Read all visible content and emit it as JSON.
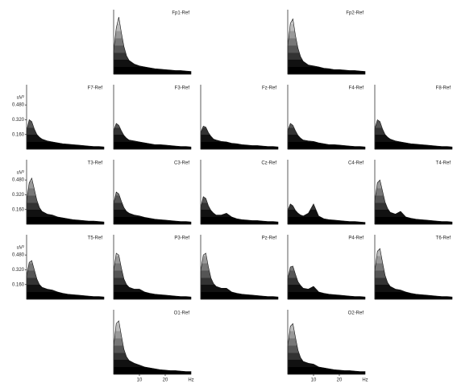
{
  "chart_data": [
    {
      "type": "area",
      "title": "Fp1-Ref",
      "x": [
        0,
        1,
        2,
        3,
        4,
        5,
        6,
        8,
        10,
        12,
        14,
        16,
        18,
        20,
        22,
        24,
        26,
        28,
        30
      ],
      "values": [
        0.25,
        0.5,
        0.62,
        0.45,
        0.3,
        0.2,
        0.15,
        0.11,
        0.09,
        0.08,
        0.07,
        0.06,
        0.055,
        0.05,
        0.045,
        0.04,
        0.04,
        0.035,
        0.03
      ],
      "xlim": [
        0,
        30
      ],
      "ylim": [
        0,
        0.7
      ]
    },
    {
      "type": "area",
      "title": "Fp2-Ref",
      "x": [
        0,
        1,
        2,
        3,
        4,
        5,
        6,
        8,
        10,
        12,
        14,
        16,
        18,
        20,
        22,
        24,
        26,
        28,
        30
      ],
      "values": [
        0.3,
        0.55,
        0.6,
        0.42,
        0.28,
        0.19,
        0.14,
        0.1,
        0.09,
        0.08,
        0.065,
        0.06,
        0.05,
        0.05,
        0.045,
        0.04,
        0.04,
        0.035,
        0.03
      ],
      "xlim": [
        0,
        30
      ],
      "ylim": [
        0,
        0.7
      ]
    },
    {
      "type": "area",
      "title": "F7-Ref",
      "x": [
        0,
        1,
        2,
        3,
        4,
        5,
        6,
        8,
        10,
        12,
        14,
        16,
        18,
        20,
        22,
        24,
        26,
        28,
        30
      ],
      "values": [
        0.2,
        0.32,
        0.3,
        0.22,
        0.16,
        0.13,
        0.11,
        0.09,
        0.08,
        0.07,
        0.06,
        0.055,
        0.05,
        0.045,
        0.04,
        0.035,
        0.03,
        0.03,
        0.025
      ],
      "xlim": [
        0,
        30
      ],
      "ylim": [
        0,
        0.7
      ],
      "y_label": "uV²",
      "yticks": [
        {
          "value": 0.16,
          "label": "0.160"
        },
        {
          "value": 0.32,
          "label": "0.320"
        },
        {
          "value": 0.48,
          "label": "0.480"
        }
      ]
    },
    {
      "type": "area",
      "title": "F3-Ref",
      "x": [
        0,
        1,
        2,
        3,
        4,
        5,
        6,
        8,
        10,
        12,
        14,
        16,
        18,
        20,
        22,
        24,
        26,
        28,
        30
      ],
      "values": [
        0.2,
        0.28,
        0.26,
        0.2,
        0.15,
        0.12,
        0.1,
        0.09,
        0.08,
        0.07,
        0.06,
        0.05,
        0.05,
        0.045,
        0.04,
        0.035,
        0.03,
        0.03,
        0.025
      ],
      "xlim": [
        0,
        30
      ],
      "ylim": [
        0,
        0.7
      ]
    },
    {
      "type": "area",
      "title": "Fz-Ref",
      "x": [
        0,
        1,
        2,
        3,
        4,
        5,
        6,
        8,
        10,
        12,
        14,
        16,
        18,
        20,
        22,
        24,
        26,
        28,
        30
      ],
      "values": [
        0.18,
        0.25,
        0.24,
        0.18,
        0.14,
        0.11,
        0.1,
        0.085,
        0.08,
        0.065,
        0.06,
        0.05,
        0.045,
        0.04,
        0.04,
        0.035,
        0.03,
        0.03,
        0.025
      ],
      "xlim": [
        0,
        30
      ],
      "ylim": [
        0,
        0.7
      ]
    },
    {
      "type": "area",
      "title": "F4-Ref",
      "x": [
        0,
        1,
        2,
        3,
        4,
        5,
        6,
        8,
        10,
        12,
        14,
        16,
        18,
        20,
        22,
        24,
        26,
        28,
        30
      ],
      "values": [
        0.2,
        0.28,
        0.26,
        0.2,
        0.15,
        0.12,
        0.1,
        0.09,
        0.085,
        0.07,
        0.06,
        0.05,
        0.05,
        0.045,
        0.04,
        0.035,
        0.03,
        0.03,
        0.025
      ],
      "xlim": [
        0,
        30
      ],
      "ylim": [
        0,
        0.7
      ]
    },
    {
      "type": "area",
      "title": "F8-Ref",
      "x": [
        0,
        1,
        2,
        3,
        4,
        5,
        6,
        8,
        10,
        12,
        14,
        16,
        18,
        20,
        22,
        24,
        26,
        28,
        30
      ],
      "values": [
        0.22,
        0.32,
        0.3,
        0.22,
        0.16,
        0.13,
        0.11,
        0.09,
        0.08,
        0.07,
        0.06,
        0.055,
        0.05,
        0.045,
        0.04,
        0.035,
        0.03,
        0.03,
        0.025
      ],
      "xlim": [
        0,
        30
      ],
      "ylim": [
        0,
        0.7
      ]
    },
    {
      "type": "area",
      "title": "T3-Ref",
      "x": [
        0,
        1,
        2,
        3,
        4,
        5,
        6,
        8,
        10,
        12,
        14,
        16,
        18,
        20,
        22,
        24,
        26,
        28,
        30
      ],
      "values": [
        0.25,
        0.45,
        0.5,
        0.38,
        0.26,
        0.18,
        0.14,
        0.11,
        0.1,
        0.08,
        0.07,
        0.06,
        0.05,
        0.045,
        0.04,
        0.035,
        0.035,
        0.03,
        0.025
      ],
      "xlim": [
        0,
        30
      ],
      "ylim": [
        0,
        0.7
      ],
      "y_label": "uV²",
      "yticks": [
        {
          "value": 0.16,
          "label": "0.160"
        },
        {
          "value": 0.32,
          "label": "0.320"
        },
        {
          "value": 0.48,
          "label": "0.480"
        }
      ]
    },
    {
      "type": "area",
      "title": "C3-Ref",
      "x": [
        0,
        1,
        2,
        3,
        4,
        5,
        6,
        8,
        10,
        12,
        14,
        16,
        18,
        20,
        22,
        24,
        26,
        28,
        30
      ],
      "values": [
        0.22,
        0.35,
        0.33,
        0.25,
        0.18,
        0.14,
        0.12,
        0.1,
        0.09,
        0.075,
        0.065,
        0.055,
        0.05,
        0.045,
        0.04,
        0.035,
        0.03,
        0.03,
        0.025
      ],
      "xlim": [
        0,
        30
      ],
      "ylim": [
        0,
        0.7
      ]
    },
    {
      "type": "area",
      "title": "Cz-Ref",
      "x": [
        0,
        1,
        2,
        3,
        4,
        5,
        6,
        8,
        10,
        12,
        14,
        16,
        18,
        20,
        22,
        24,
        26,
        28,
        30
      ],
      "values": [
        0.18,
        0.3,
        0.28,
        0.2,
        0.15,
        0.12,
        0.1,
        0.1,
        0.12,
        0.08,
        0.06,
        0.05,
        0.045,
        0.04,
        0.04,
        0.035,
        0.03,
        0.03,
        0.025
      ],
      "xlim": [
        0,
        30
      ],
      "ylim": [
        0,
        0.7
      ]
    },
    {
      "type": "area",
      "title": "C4-Ref",
      "x": [
        0,
        1,
        2,
        3,
        4,
        5,
        6,
        8,
        10,
        12,
        14,
        16,
        18,
        20,
        22,
        24,
        26,
        28,
        30
      ],
      "values": [
        0.15,
        0.22,
        0.2,
        0.15,
        0.12,
        0.1,
        0.09,
        0.12,
        0.22,
        0.09,
        0.06,
        0.05,
        0.045,
        0.04,
        0.035,
        0.03,
        0.03,
        0.025,
        0.02
      ],
      "xlim": [
        0,
        30
      ],
      "ylim": [
        0,
        0.7
      ]
    },
    {
      "type": "area",
      "title": "T4-Ref",
      "x": [
        0,
        1,
        2,
        3,
        4,
        5,
        6,
        8,
        10,
        12,
        14,
        16,
        18,
        20,
        22,
        24,
        26,
        28,
        30
      ],
      "values": [
        0.25,
        0.45,
        0.48,
        0.36,
        0.24,
        0.17,
        0.13,
        0.11,
        0.14,
        0.08,
        0.065,
        0.055,
        0.05,
        0.045,
        0.04,
        0.035,
        0.03,
        0.03,
        0.025
      ],
      "xlim": [
        0,
        30
      ],
      "ylim": [
        0,
        0.7
      ]
    },
    {
      "type": "area",
      "title": "T5-Ref",
      "x": [
        0,
        1,
        2,
        3,
        4,
        5,
        6,
        8,
        10,
        12,
        14,
        16,
        18,
        20,
        22,
        24,
        26,
        28,
        30
      ],
      "values": [
        0.25,
        0.4,
        0.42,
        0.32,
        0.22,
        0.16,
        0.13,
        0.11,
        0.1,
        0.08,
        0.065,
        0.055,
        0.05,
        0.045,
        0.04,
        0.035,
        0.03,
        0.03,
        0.025
      ],
      "xlim": [
        0,
        30
      ],
      "ylim": [
        0,
        0.7
      ],
      "y_label": "uV²",
      "yticks": [
        {
          "value": 0.16,
          "label": "0.160"
        },
        {
          "value": 0.32,
          "label": "0.320"
        },
        {
          "value": 0.48,
          "label": "0.480"
        }
      ]
    },
    {
      "type": "area",
      "title": "P3-Ref",
      "x": [
        0,
        1,
        2,
        3,
        4,
        5,
        6,
        8,
        10,
        12,
        14,
        16,
        18,
        20,
        22,
        24,
        26,
        28,
        30
      ],
      "values": [
        0.3,
        0.5,
        0.48,
        0.34,
        0.22,
        0.16,
        0.13,
        0.11,
        0.11,
        0.08,
        0.065,
        0.055,
        0.05,
        0.045,
        0.04,
        0.035,
        0.03,
        0.03,
        0.025
      ],
      "xlim": [
        0,
        30
      ],
      "ylim": [
        0,
        0.7
      ]
    },
    {
      "type": "area",
      "title": "Pz-Ref",
      "x": [
        0,
        1,
        2,
        3,
        4,
        5,
        6,
        8,
        10,
        12,
        14,
        16,
        18,
        20,
        22,
        24,
        26,
        28,
        30
      ],
      "values": [
        0.3,
        0.48,
        0.5,
        0.35,
        0.23,
        0.17,
        0.14,
        0.12,
        0.12,
        0.08,
        0.065,
        0.055,
        0.05,
        0.045,
        0.04,
        0.035,
        0.03,
        0.03,
        0.025
      ],
      "xlim": [
        0,
        30
      ],
      "ylim": [
        0,
        0.7
      ]
    },
    {
      "type": "area",
      "title": "P4-Ref",
      "x": [
        0,
        1,
        2,
        3,
        4,
        5,
        6,
        8,
        10,
        12,
        14,
        16,
        18,
        20,
        22,
        24,
        26,
        28,
        30
      ],
      "values": [
        0.22,
        0.35,
        0.36,
        0.27,
        0.19,
        0.15,
        0.12,
        0.11,
        0.14,
        0.08,
        0.065,
        0.055,
        0.05,
        0.045,
        0.04,
        0.035,
        0.03,
        0.03,
        0.025
      ],
      "xlim": [
        0,
        30
      ],
      "ylim": [
        0,
        0.7
      ]
    },
    {
      "type": "area",
      "title": "T6-Ref",
      "x": [
        0,
        1,
        2,
        3,
        4,
        5,
        6,
        8,
        10,
        12,
        14,
        16,
        18,
        20,
        22,
        24,
        26,
        28,
        30
      ],
      "values": [
        0.3,
        0.52,
        0.55,
        0.4,
        0.26,
        0.18,
        0.14,
        0.11,
        0.1,
        0.08,
        0.065,
        0.055,
        0.05,
        0.045,
        0.04,
        0.035,
        0.03,
        0.03,
        0.025
      ],
      "xlim": [
        0,
        30
      ],
      "ylim": [
        0,
        0.7
      ]
    },
    {
      "type": "area",
      "title": "O1-Ref",
      "x": [
        0,
        1,
        2,
        3,
        4,
        5,
        6,
        8,
        10,
        12,
        14,
        16,
        18,
        20,
        22,
        24,
        26,
        28,
        30
      ],
      "values": [
        0.3,
        0.55,
        0.58,
        0.42,
        0.27,
        0.19,
        0.15,
        0.12,
        0.1,
        0.08,
        0.07,
        0.06,
        0.05,
        0.045,
        0.04,
        0.04,
        0.035,
        0.03,
        0.03
      ],
      "xlim": [
        0,
        30
      ],
      "ylim": [
        0,
        0.7
      ],
      "x_label": "Hz",
      "xticks": [
        10,
        20
      ]
    },
    {
      "type": "area",
      "title": "O2-Ref",
      "x": [
        0,
        1,
        2,
        3,
        4,
        5,
        6,
        8,
        10,
        12,
        14,
        16,
        18,
        20,
        22,
        24,
        26,
        28,
        30
      ],
      "values": [
        0.3,
        0.52,
        0.55,
        0.4,
        0.26,
        0.18,
        0.14,
        0.12,
        0.11,
        0.08,
        0.07,
        0.06,
        0.05,
        0.045,
        0.04,
        0.04,
        0.035,
        0.03,
        0.03
      ],
      "xlim": [
        0,
        30
      ],
      "ylim": [
        0,
        0.7
      ],
      "x_label": "Hz",
      "xticks": [
        10,
        20
      ]
    }
  ]
}
